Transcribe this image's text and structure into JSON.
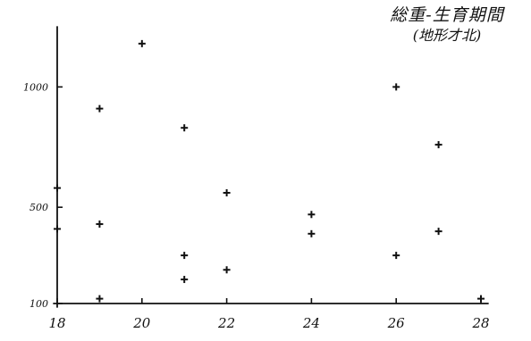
{
  "chart_data": {
    "type": "scatter",
    "title": "総重-生育期間",
    "subtitle": "(地形才北)",
    "xlabel": "",
    "ylabel": "",
    "xlim": [
      18,
      28
    ],
    "ylim": [
      100,
      1250
    ],
    "x_ticks": [
      18,
      20,
      22,
      24,
      26,
      28
    ],
    "x_tick_labels": [
      "18",
      "20",
      "22",
      "24",
      "26",
      "28"
    ],
    "y_ticks": [
      100,
      500,
      1000
    ],
    "y_tick_labels": [
      "100",
      "500",
      "1000"
    ],
    "grid": false,
    "legend": "none",
    "marker": "plus",
    "marker_color": "#111111",
    "series": [
      {
        "points": [
          [
            18,
            580
          ],
          [
            18,
            410
          ],
          [
            19,
            910
          ],
          [
            19,
            430
          ],
          [
            19,
            120
          ],
          [
            20,
            1180
          ],
          [
            21,
            830
          ],
          [
            21,
            300
          ],
          [
            21,
            200
          ],
          [
            22,
            560
          ],
          [
            22,
            240
          ],
          [
            24,
            470
          ],
          [
            24,
            390
          ],
          [
            26,
            1000
          ],
          [
            26,
            300
          ],
          [
            27,
            760
          ],
          [
            27,
            400
          ],
          [
            28,
            120
          ]
        ]
      }
    ]
  }
}
